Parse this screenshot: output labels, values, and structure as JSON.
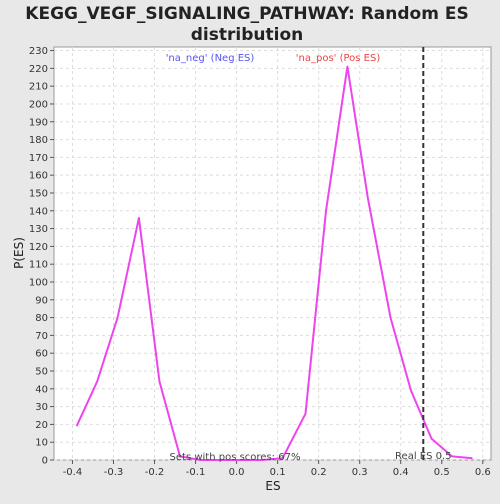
{
  "chart_data": {
    "type": "line",
    "title_lines": [
      "KEGG_VEGF_SIGNALING_PATHWAY: Random ES",
      "distribution"
    ],
    "xlabel": "ES",
    "ylabel": "P(ES)",
    "xlim": [
      -0.445,
      0.62
    ],
    "ylim": [
      0,
      232
    ],
    "x_ticks": [
      -0.4,
      -0.3,
      -0.2,
      -0.1,
      0.0,
      0.1,
      0.2,
      0.3,
      0.4,
      0.5,
      0.6
    ],
    "y_ticks": [
      0,
      10,
      20,
      30,
      40,
      50,
      60,
      70,
      80,
      90,
      100,
      110,
      120,
      130,
      140,
      150,
      160,
      170,
      180,
      190,
      200,
      210,
      220,
      230
    ],
    "grid": true,
    "series": [
      {
        "color": "#ee44ee",
        "x": [
          -0.39,
          -0.34,
          -0.29,
          -0.238,
          -0.188,
          -0.138,
          -0.088,
          -0.038,
          0.012,
          0.062,
          0.112,
          0.168,
          0.218,
          0.27,
          0.32,
          0.375,
          0.425,
          0.475,
          0.525,
          0.575
        ],
        "y": [
          19,
          44,
          80,
          136,
          44,
          2,
          0,
          0,
          0,
          0,
          1,
          26,
          140,
          221,
          147,
          80,
          39,
          12,
          2,
          1
        ]
      }
    ],
    "real_es": {
      "x": 0.455,
      "label": "Real ES 0.5",
      "color": "#333333"
    },
    "legend": [
      {
        "label": "'na_neg' (Neg ES)",
        "color": "#5555ee"
      },
      {
        "label": "'na_pos' (Pos ES)",
        "color": "#ee4444"
      }
    ],
    "annotation": "Sets with pos scores: 67%"
  }
}
